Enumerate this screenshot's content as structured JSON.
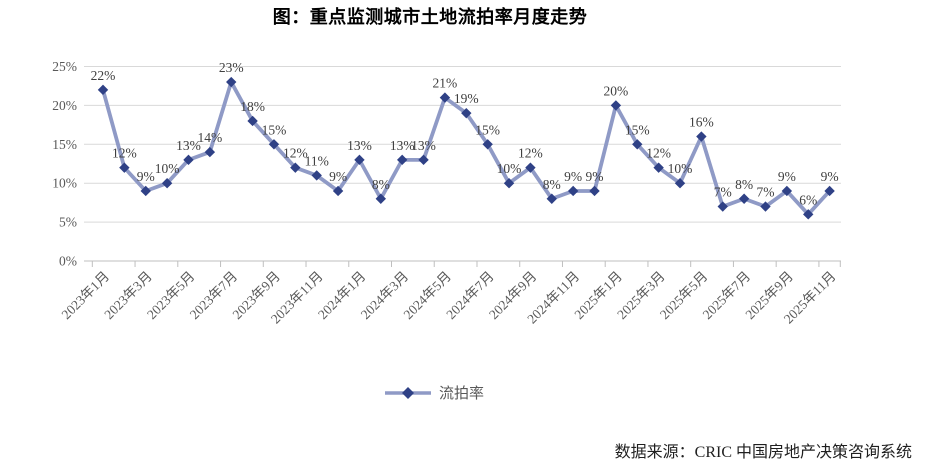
{
  "header": {
    "title": "图：重点监测城市土地流拍率月度走势"
  },
  "footer": {
    "source": "数据来源：CRIC 中国房地产决策咨询系统"
  },
  "chart_data": {
    "type": "line",
    "title": "图：重点监测城市土地流拍率月度走势",
    "series": [
      {
        "name": "流拍率",
        "values": [
          22,
          12,
          9,
          10,
          13,
          14,
          23,
          18,
          15,
          12,
          11,
          9,
          13,
          8,
          13,
          13,
          21,
          19,
          15,
          10,
          12,
          8,
          9,
          9,
          20,
          15,
          12,
          10,
          16,
          7,
          8,
          7,
          9,
          6,
          9
        ]
      }
    ],
    "x": [
      "2023年1月",
      "2023年2月",
      "2023年3月",
      "2023年4月",
      "2023年5月",
      "2023年6月",
      "2023年7月",
      "2023年8月",
      "2023年9月",
      "2023年10月",
      "2023年11月",
      "2023年12月",
      "2024年1月",
      "2024年2月",
      "2024年3月",
      "2024年4月",
      "2024年5月",
      "2024年6月",
      "2024年7月",
      "2024年8月",
      "2024年9月",
      "2024年10月",
      "2024年11月",
      "2024年12月",
      "2025年1月",
      "2025年2月",
      "2025年3月",
      "2025年4月",
      "2025年5月",
      "2025年6月",
      "2025年7月",
      "2025年8月",
      "2025年9月",
      "2025年10月",
      "2025年11月"
    ],
    "x_ticks_shown": [
      "2023年1月",
      "2023年3月",
      "2023年5月",
      "2023年7月",
      "2023年9月",
      "2023年11月",
      "2024年1月",
      "2024年3月",
      "2024年5月",
      "2024年7月",
      "2024年9月",
      "2024年11月",
      "2025年1月",
      "2025年3月",
      "2025年5月",
      "2025年7月",
      "2025年9月",
      "2025年11月"
    ],
    "data_labels": [
      "22%",
      "12%",
      "9%",
      "10%",
      "13%",
      "14%",
      "23%",
      "18%",
      "15%",
      "12%",
      "11%",
      "9%",
      "13%",
      "8%",
      "13%",
      "13%",
      "21%",
      "19%",
      "15%",
      "10%",
      "12%",
      "8%",
      "9%",
      "9%",
      "20%",
      "15%",
      "12%",
      "10%",
      "16%",
      "7%",
      "8%",
      "7%",
      "9%",
      "6%",
      "9%"
    ],
    "y_ticks": [
      "0%",
      "5%",
      "10%",
      "15%",
      "20%",
      "25%"
    ],
    "ylim": [
      0,
      25
    ],
    "grid": true,
    "legend_position": "bottom",
    "legend_label": "流拍率",
    "colors": {
      "line": "#8F9AC6",
      "marker": "#2F4186",
      "grid": "#D9D9D9",
      "axis": "#BFBFBF",
      "axis_text": "#595959",
      "label_text": "#404040"
    }
  }
}
